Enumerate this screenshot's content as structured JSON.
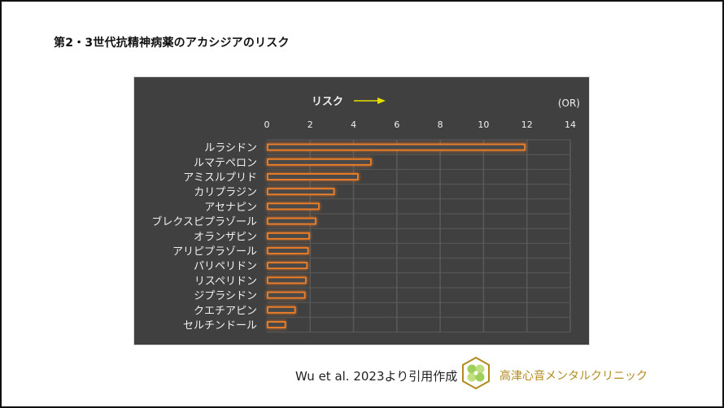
{
  "page": {
    "title": "第2・3世代抗精神病薬のアカシジアのリスク",
    "citation": "Wu et al. 2023より引用作成",
    "clinic_name": "高津心音メンタルクリニック",
    "logo_icon": "clover-hexagon-logo"
  },
  "colors": {
    "panel_bg": "#404040",
    "bar_outline": "#f07f25",
    "grid": "#5a5a5a",
    "arrow": "#e6e000",
    "label_text": "#f0f0f0",
    "clinic_text": "#b38a1f"
  },
  "chart_data": {
    "type": "bar",
    "orientation": "horizontal",
    "title": "リスク",
    "unit_label": "(OR)",
    "xlabel": "リスク",
    "ylabel": "",
    "xlim": [
      0,
      14
    ],
    "xticks": [
      0,
      2,
      4,
      6,
      8,
      10,
      12,
      14
    ],
    "grid": true,
    "categories": [
      "ルラシドン",
      "ルマテペロン",
      "アミスルプリド",
      "カリプラジン",
      "アセナピン",
      "ブレクスピプラゾール",
      "オランザピン",
      "アリピプラゾール",
      "パリペリドン",
      "リスペリドン",
      "ジプラシドン",
      "クエチアピン",
      "セルチンドール"
    ],
    "values": [
      11.9,
      4.8,
      4.2,
      3.1,
      2.4,
      2.25,
      1.95,
      1.9,
      1.85,
      1.8,
      1.75,
      1.3,
      0.85
    ]
  }
}
